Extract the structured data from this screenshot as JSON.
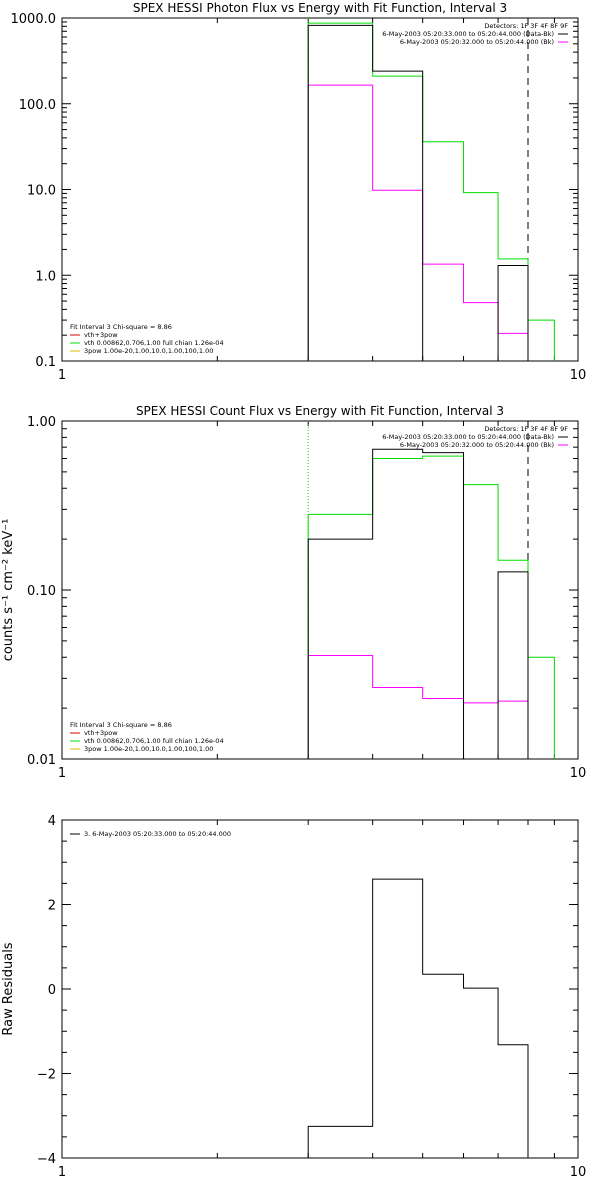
{
  "colors": {
    "data": "#000000",
    "background": "#ff00ff",
    "model": "#00dd00",
    "vth": "#dd0000",
    "bpow": "#ddbb00",
    "markers": "#000000"
  },
  "chart_data": [
    {
      "type": "line",
      "title": "SPEX HESSI Photon Flux vs Energy with Fit Function, Interval 3",
      "xlabel": "",
      "ylabel": "",
      "x_scale": "log",
      "y_scale": "log",
      "xlim": [
        1,
        10
      ],
      "ylim": [
        0.1,
        1000
      ],
      "x_ticks": [
        "1",
        "10"
      ],
      "y_ticks": [
        "0.1",
        "1.0",
        "10.0",
        "100.0",
        "1000.0"
      ],
      "grid": false,
      "bin_edges": [
        3,
        4,
        5,
        6,
        7,
        8,
        9
      ],
      "series": [
        {
          "name": "6-May-2003 05:20:33.000 to 05:20:44.000 (Data-Bk)",
          "color_key": "data",
          "values": [
            820,
            240,
            null,
            null,
            1.3,
            null
          ]
        },
        {
          "name": "6-May-2003 05:20:32.000 to 05:20:44.000 (Bk)",
          "color_key": "background",
          "values": [
            165,
            9.8,
            1.35,
            0.48,
            0.21,
            null
          ]
        },
        {
          "name": "vth+3pow",
          "color_key": "model",
          "values": [
            870,
            210,
            36,
            9.2,
            1.55,
            0.3
          ]
        }
      ],
      "vlines": [
        {
          "x": 3,
          "style": "dotted",
          "color_key": "model"
        },
        {
          "x": 8,
          "style": "dashed",
          "color_key": "markers"
        }
      ],
      "legend_top_right": {
        "header": "Detectors: 1F 3F 4F 8F 9F",
        "entries": [
          {
            "text": "6-May-2003 05:20:33.000 to 05:20:44.000 (Data-Bk)",
            "color_key": "data"
          },
          {
            "text": "6-May-2003 05:20:32.000 to 05:20:44.000 (Bk)",
            "color_key": "background"
          }
        ]
      },
      "legend_bottom_left": {
        "header": "Fit Interval 3   Chi-square = 8.86",
        "entries": [
          {
            "text": "vth+3pow",
            "color_key": "vth"
          },
          {
            "text": "vth 0.00862,0.706,1.00  full chian 1.26e-04",
            "color_key": "model"
          },
          {
            "text": "3pow 1.00e-20,1.00,10.0,1.00,100,1.00",
            "color_key": "bpow"
          }
        ]
      }
    },
    {
      "type": "line",
      "title": "SPEX HESSI Count Flux vs Energy with Fit Function, Interval 3",
      "xlabel": "",
      "ylabel": "counts s⁻¹ cm⁻² keV⁻¹",
      "x_scale": "log",
      "y_scale": "log",
      "xlim": [
        1,
        10
      ],
      "ylim": [
        0.01,
        1.0
      ],
      "x_ticks": [
        "1",
        "10"
      ],
      "y_ticks": [
        "0.01",
        "0.10",
        "1.00"
      ],
      "grid": false,
      "bin_edges": [
        3,
        4,
        5,
        6,
        7,
        8,
        9
      ],
      "series": [
        {
          "name": "6-May-2003 05:20:33.000 to 05:20:44.000 (Data-Bk)",
          "color_key": "data",
          "values": [
            0.2,
            0.68,
            0.65,
            null,
            0.128,
            null
          ]
        },
        {
          "name": "6-May-2003 05:20:32.000 to 05:20:44.000 (Bk)",
          "color_key": "background",
          "values": [
            0.041,
            0.0265,
            0.0228,
            0.0215,
            0.022,
            null
          ]
        },
        {
          "name": "vth+3pow",
          "color_key": "model",
          "values": [
            0.28,
            0.6,
            0.62,
            0.42,
            0.15,
            0.04
          ]
        }
      ],
      "vlines": [
        {
          "x": 3,
          "style": "dotted",
          "color_key": "model"
        },
        {
          "x": 8,
          "style": "dashed",
          "color_key": "markers"
        }
      ],
      "legend_top_right": {
        "header": "Detectors: 1F 3F 4F 8F 9F",
        "entries": [
          {
            "text": "6-May-2003 05:20:33.000 to 05:20:44.000 (Data-Bk)",
            "color_key": "data"
          },
          {
            "text": "6-May-2003 05:20:32.000 to 05:20:44.000 (Bk)",
            "color_key": "background"
          }
        ]
      },
      "legend_bottom_left": {
        "header": "Fit Interval 3   Chi-square = 8.86",
        "entries": [
          {
            "text": "vth+3pow",
            "color_key": "vth"
          },
          {
            "text": "vth 0.00862,0.706,1.00  full chian 1.26e-04",
            "color_key": "model"
          },
          {
            "text": "3pow 1.00e-20,1.00,10.0,1.00,100,1.00",
            "color_key": "bpow"
          }
        ]
      }
    },
    {
      "type": "line",
      "title": "",
      "xlabel": "",
      "ylabel": "Raw Residuals",
      "x_scale": "log",
      "y_scale": "linear",
      "xlim": [
        1,
        10
      ],
      "ylim": [
        -4,
        4
      ],
      "x_ticks": [
        "1",
        "10"
      ],
      "y_ticks": [
        "-4",
        "-2",
        "0",
        "2",
        "4"
      ],
      "grid": false,
      "bin_edges": [
        3,
        4,
        5,
        6,
        7,
        8
      ],
      "series": [
        {
          "name": "3. 6-May-2003 05:20:33.000 to 05:20:44.000",
          "color_key": "data",
          "values": [
            -3.25,
            2.6,
            0.35,
            0.02,
            -1.32
          ]
        }
      ],
      "legend_top_left": {
        "entries": [
          {
            "text": "3. 6-May-2003 05:20:33.000 to 05:20:44.000",
            "color_key": "data"
          }
        ]
      }
    }
  ]
}
